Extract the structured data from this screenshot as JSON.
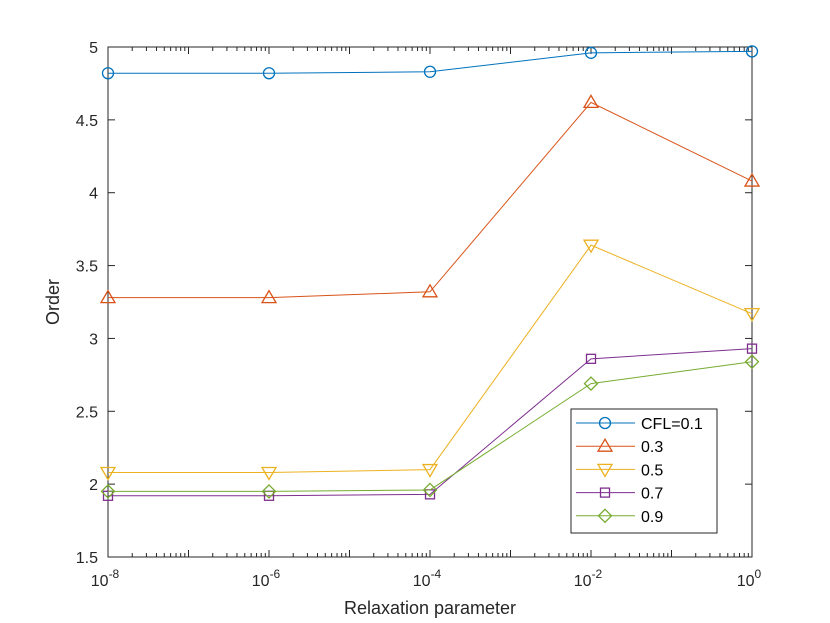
{
  "chart_data": {
    "type": "line",
    "x_scale": "log",
    "title": "",
    "xlabel": "Relaxation parameter",
    "ylabel": "Order",
    "xlim": [
      1e-08,
      1
    ],
    "ylim": [
      1.5,
      5
    ],
    "x": [
      1e-08,
      1e-06,
      0.0001,
      0.01,
      1
    ],
    "x_tick_labels": [
      {
        "base": "10",
        "exp": "-8"
      },
      {
        "base": "10",
        "exp": "-6"
      },
      {
        "base": "10",
        "exp": "-4"
      },
      {
        "base": "10",
        "exp": "-2"
      },
      {
        "base": "10",
        "exp": "0"
      }
    ],
    "y_ticks": [
      1.5,
      2,
      2.5,
      3,
      3.5,
      4,
      4.5,
      5
    ],
    "y_tick_labels": [
      "1.5",
      "2",
      "2.5",
      "3",
      "3.5",
      "4",
      "4.5",
      "5"
    ],
    "legend_position": "bottom-right",
    "grid": false,
    "series": [
      {
        "name": "CFL=0.1",
        "marker": "circle",
        "color": "#0072BD",
        "values": [
          4.82,
          4.82,
          4.83,
          4.96,
          4.97
        ]
      },
      {
        "name": "0.3",
        "marker": "triangle-up",
        "color": "#D95319",
        "values": [
          3.28,
          3.28,
          3.32,
          4.62,
          4.08
        ]
      },
      {
        "name": "0.5",
        "marker": "triangle-down",
        "color": "#EDB120",
        "values": [
          2.08,
          2.08,
          2.1,
          3.64,
          3.17
        ]
      },
      {
        "name": "0.7",
        "marker": "square",
        "color": "#7E2F8E",
        "values": [
          1.92,
          1.92,
          1.93,
          2.86,
          2.93
        ]
      },
      {
        "name": "0.9",
        "marker": "diamond",
        "color": "#77AC30",
        "values": [
          1.95,
          1.95,
          1.96,
          2.69,
          2.84
        ]
      }
    ]
  }
}
